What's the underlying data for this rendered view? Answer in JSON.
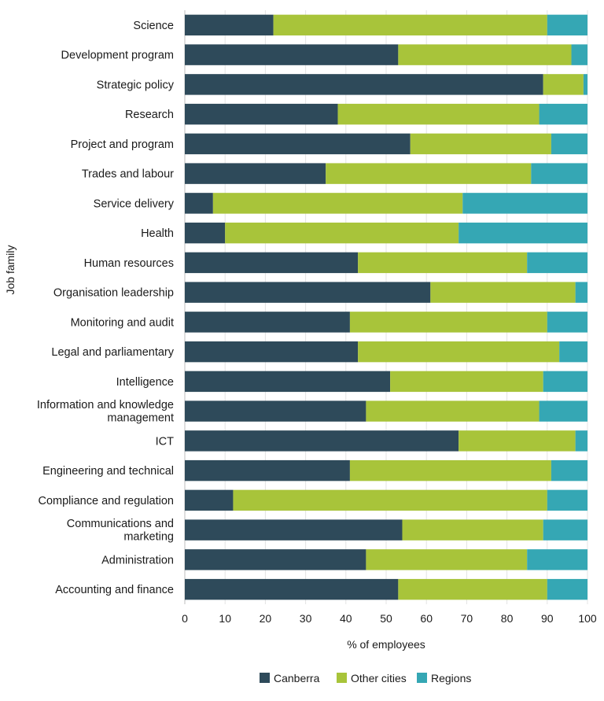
{
  "chart_data": {
    "type": "bar",
    "orientation": "horizontal",
    "stacked": true,
    "title": "",
    "xlabel": "% of employees",
    "ylabel": "Job family",
    "xlim": [
      0,
      100
    ],
    "xticks": [
      "0",
      "10",
      "20",
      "30",
      "40",
      "50",
      "60",
      "70",
      "80",
      "90",
      "100"
    ],
    "grid": true,
    "legend_position": "bottom",
    "categories": [
      "Science",
      "Development program",
      "Strategic policy",
      "Research",
      "Project and program",
      "Trades and labour",
      "Service delivery",
      "Health",
      "Human resources",
      "Organisation leadership",
      "Monitoring and audit",
      "Legal and parliamentary",
      "Intelligence",
      "Information and knowledge management",
      "ICT",
      "Engineering and technical",
      "Compliance and regulation",
      "Communications and marketing",
      "Administration",
      "Accounting and finance"
    ],
    "series": [
      {
        "name": "Canberra",
        "color": "#2e4a5a",
        "values": [
          22,
          53,
          89,
          38,
          56,
          35,
          7,
          10,
          43,
          61,
          41,
          43,
          51,
          45,
          68,
          41,
          12,
          54,
          45,
          53
        ]
      },
      {
        "name": "Other cities",
        "color": "#a8c43a",
        "values": [
          68,
          43,
          10,
          50,
          35,
          51,
          62,
          58,
          42,
          36,
          49,
          50,
          38,
          43,
          29,
          50,
          78,
          35,
          40,
          37
        ]
      },
      {
        "name": "Regions",
        "color": "#35a7b4",
        "values": [
          10,
          4,
          1,
          12,
          9,
          14,
          31,
          32,
          15,
          3,
          10,
          7,
          11,
          12,
          3,
          9,
          10,
          11,
          15,
          10
        ]
      }
    ]
  }
}
